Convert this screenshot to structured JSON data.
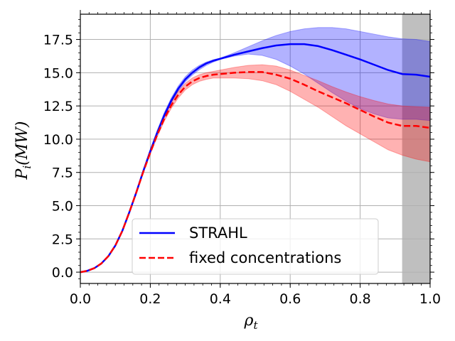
{
  "chart_data": {
    "type": "line",
    "title": "",
    "xlabel": "ρ",
    "xlabel_sub": "t",
    "ylabel": "P",
    "ylabel_sub": "i",
    "ylabel_unit": "(MW)",
    "xlim": [
      0.0,
      1.0
    ],
    "ylim": [
      -0.85,
      19.4
    ],
    "grid": true,
    "legend_position": "lower-center",
    "x_ticks": [
      0.0,
      0.2,
      0.4,
      0.6,
      0.8,
      1.0
    ],
    "x_tick_labels": [
      "0.0",
      "0.2",
      "0.4",
      "0.6",
      "0.8",
      "1.0"
    ],
    "y_ticks": [
      0.0,
      2.5,
      5.0,
      7.5,
      10.0,
      12.5,
      15.0,
      17.5
    ],
    "y_tick_labels": [
      "0.0",
      "2.5",
      "5.0",
      "7.5",
      "10.0",
      "12.5",
      "15.0",
      "17.5"
    ],
    "shaded_region": {
      "x_start": 0.92,
      "x_end": 1.0,
      "color": "#808080"
    },
    "x": [
      0.0,
      0.02,
      0.04,
      0.06,
      0.08,
      0.1,
      0.12,
      0.14,
      0.16,
      0.18,
      0.2,
      0.22,
      0.24,
      0.26,
      0.28,
      0.3,
      0.32,
      0.34,
      0.36,
      0.38,
      0.4,
      0.44,
      0.48,
      0.52,
      0.56,
      0.6,
      0.64,
      0.68,
      0.72,
      0.76,
      0.8,
      0.84,
      0.88,
      0.92,
      0.96,
      1.0
    ],
    "series": [
      {
        "name": "STRAHL",
        "color": "#0000ff",
        "band_color": "#0000ff",
        "dash": "solid",
        "values": [
          0.0,
          0.1,
          0.3,
          0.65,
          1.2,
          2.0,
          3.1,
          4.5,
          6.0,
          7.6,
          9.1,
          10.5,
          11.8,
          12.9,
          13.8,
          14.5,
          15.0,
          15.4,
          15.7,
          15.9,
          16.05,
          16.35,
          16.6,
          16.85,
          17.05,
          17.15,
          17.15,
          17.0,
          16.7,
          16.35,
          16.0,
          15.6,
          15.2,
          14.9,
          14.85,
          14.7
        ],
        "band_upper": [
          0.0,
          0.1,
          0.3,
          0.66,
          1.22,
          2.04,
          3.15,
          4.58,
          6.1,
          7.72,
          9.25,
          10.68,
          12.0,
          13.1,
          14.0,
          14.7,
          15.2,
          15.55,
          15.8,
          15.98,
          16.1,
          16.5,
          16.95,
          17.4,
          17.8,
          18.1,
          18.3,
          18.4,
          18.4,
          18.3,
          18.1,
          17.9,
          17.7,
          17.55,
          17.5,
          17.35
        ],
        "band_lower": [
          0.0,
          0.1,
          0.3,
          0.64,
          1.18,
          1.97,
          3.05,
          4.43,
          5.92,
          7.5,
          8.97,
          10.33,
          11.62,
          12.72,
          13.62,
          14.32,
          14.82,
          15.22,
          15.55,
          15.8,
          16.0,
          16.25,
          16.4,
          16.3,
          16.0,
          15.5,
          14.9,
          14.2,
          13.5,
          12.85,
          12.3,
          11.9,
          11.6,
          11.5,
          11.5,
          11.4
        ]
      },
      {
        "name": "fixed concentrations",
        "color": "#ff0000",
        "band_color": "#ff0000",
        "dash": "dashed",
        "values": [
          0.0,
          0.1,
          0.3,
          0.65,
          1.2,
          2.0,
          3.1,
          4.5,
          6.0,
          7.55,
          9.0,
          10.35,
          11.55,
          12.55,
          13.35,
          13.95,
          14.35,
          14.6,
          14.75,
          14.85,
          14.9,
          15.0,
          15.05,
          15.05,
          14.85,
          14.55,
          14.1,
          13.6,
          13.15,
          12.7,
          12.2,
          11.7,
          11.25,
          11.0,
          11.0,
          10.85
        ],
        "band_upper": [
          0.0,
          0.1,
          0.3,
          0.66,
          1.22,
          2.03,
          3.14,
          4.56,
          6.08,
          7.66,
          9.14,
          10.52,
          11.75,
          12.78,
          13.6,
          14.2,
          14.6,
          14.85,
          15.0,
          15.1,
          15.2,
          15.4,
          15.55,
          15.6,
          15.5,
          15.2,
          14.8,
          14.4,
          13.95,
          13.55,
          13.2,
          12.9,
          12.65,
          12.5,
          12.45,
          12.4
        ],
        "band_lower": [
          0.0,
          0.1,
          0.3,
          0.64,
          1.18,
          1.97,
          3.06,
          4.44,
          5.92,
          7.44,
          8.86,
          10.18,
          11.35,
          12.32,
          13.1,
          13.7,
          14.1,
          14.35,
          14.5,
          14.6,
          14.6,
          14.6,
          14.55,
          14.4,
          14.1,
          13.6,
          13.0,
          12.4,
          11.7,
          11.0,
          10.4,
          9.8,
          9.2,
          8.8,
          8.5,
          8.3
        ]
      }
    ]
  }
}
